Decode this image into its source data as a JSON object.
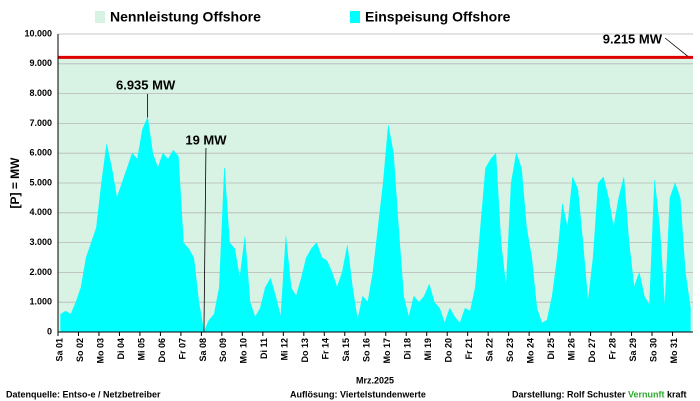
{
  "chart_data": {
    "type": "area",
    "ylabel": "[P] = MW",
    "xlabel": "Mrz.2025",
    "categories": [
      "Sa 01",
      null,
      null,
      null,
      "So 02",
      null,
      null,
      null,
      "Mo 03",
      null,
      null,
      null,
      "Di 04",
      null,
      null,
      null,
      "Mi 05",
      null,
      null,
      null,
      "Do 06",
      null,
      null,
      null,
      "Fr 07",
      null,
      null,
      null,
      "Sa 08",
      null,
      null,
      null,
      "So 09",
      null,
      null,
      null,
      "Mo 10",
      null,
      null,
      null,
      "Di 11",
      null,
      null,
      null,
      "Mi 12",
      null,
      null,
      null,
      "Do 13",
      null,
      null,
      null,
      "Fr 14",
      null,
      null,
      null,
      "Sa 15",
      null,
      null,
      null,
      "So 16",
      null,
      null,
      null,
      "Mo 17",
      null,
      null,
      null,
      "Di 18",
      null,
      null,
      null,
      "Mi 19",
      null,
      null,
      null,
      "Do 20",
      null,
      null,
      null,
      "Fr 21",
      null,
      null,
      null,
      "Sa 22",
      null,
      null,
      null,
      "So 23",
      null,
      null,
      null,
      "Mo 24",
      null,
      null,
      null,
      "Di 25",
      null,
      null,
      null,
      "Mi 26",
      null,
      null,
      null,
      "Do 27",
      null,
      null,
      null,
      "Fr 28",
      null,
      null,
      null,
      "Sa 29",
      null,
      null,
      null,
      "So 30",
      null,
      null,
      null,
      "Mo 31",
      null,
      null,
      null
    ],
    "series": [
      {
        "name": "Einspeisung Offshore",
        "color": "#00ffff",
        "values": [
          600,
          700,
          600,
          1000,
          1500,
          2500,
          3000,
          3500,
          5000,
          6300,
          5500,
          4500,
          5000,
          5500,
          6000,
          5800,
          6800,
          7200,
          6000,
          5500,
          6000,
          5800,
          6100,
          5900,
          3000,
          2800,
          2500,
          1000,
          19,
          400,
          600,
          1500,
          5500,
          3000,
          2800,
          1800,
          3200,
          1000,
          500,
          800,
          1500,
          1800,
          1200,
          500,
          3200,
          1500,
          1200,
          1800,
          2500,
          2800,
          3000,
          2500,
          2400,
          2000,
          1500,
          2000,
          2900,
          1500,
          400,
          1200,
          1000,
          2000,
          3500,
          5000,
          6935,
          6000,
          3500,
          1200,
          500,
          1200,
          1000,
          1200,
          1600,
          1000,
          800,
          300,
          800,
          500,
          300,
          800,
          700,
          1500,
          3500,
          5500,
          5800,
          6000,
          3000,
          1500,
          5000,
          6000,
          5500,
          3500,
          2500,
          800,
          300,
          400,
          1200,
          2500,
          4300,
          3500,
          5200,
          4800,
          3000,
          1000,
          2500,
          5000,
          5200,
          4500,
          3500,
          4500,
          5200,
          3000,
          1500,
          2000,
          1200,
          900,
          5100,
          3500,
          800,
          4500,
          5000,
          4500,
          2000,
          800
        ]
      }
    ],
    "reference": {
      "name": "Nennleistung Offshore",
      "value": 9215,
      "color": "#d8f3e4",
      "line_color": "#e00000",
      "label": "9.215 MW"
    },
    "annotations": {
      "min_label": "19 MW",
      "max_label": "6.935 MW"
    },
    "ylim": [
      0,
      10000
    ],
    "yticks": [
      0,
      {
        "value": 1000,
        "label": "1.000"
      },
      {
        "value": 2000,
        "label": "2.000"
      },
      {
        "value": 3000,
        "label": "3.000"
      },
      {
        "value": 4000,
        "label": "4.000"
      },
      {
        "value": 5000,
        "label": "5.000"
      },
      {
        "value": 6000,
        "label": "6.000"
      },
      {
        "value": 7000,
        "label": "7.000"
      },
      {
        "value": 8000,
        "label": "8.000"
      },
      {
        "value": 9000,
        "label": "9.000"
      },
      {
        "value": 10000,
        "label": "10.000"
      }
    ],
    "grid": true
  },
  "footer": {
    "source": "Datenquelle: Entso-e  / Netzbetreiber",
    "resolution": "Auflösung: Viertelstundenwerte",
    "author": "Darstellung:  Rolf Schuster",
    "brand_a": "Vernunft",
    "brand_b": "kraft"
  }
}
